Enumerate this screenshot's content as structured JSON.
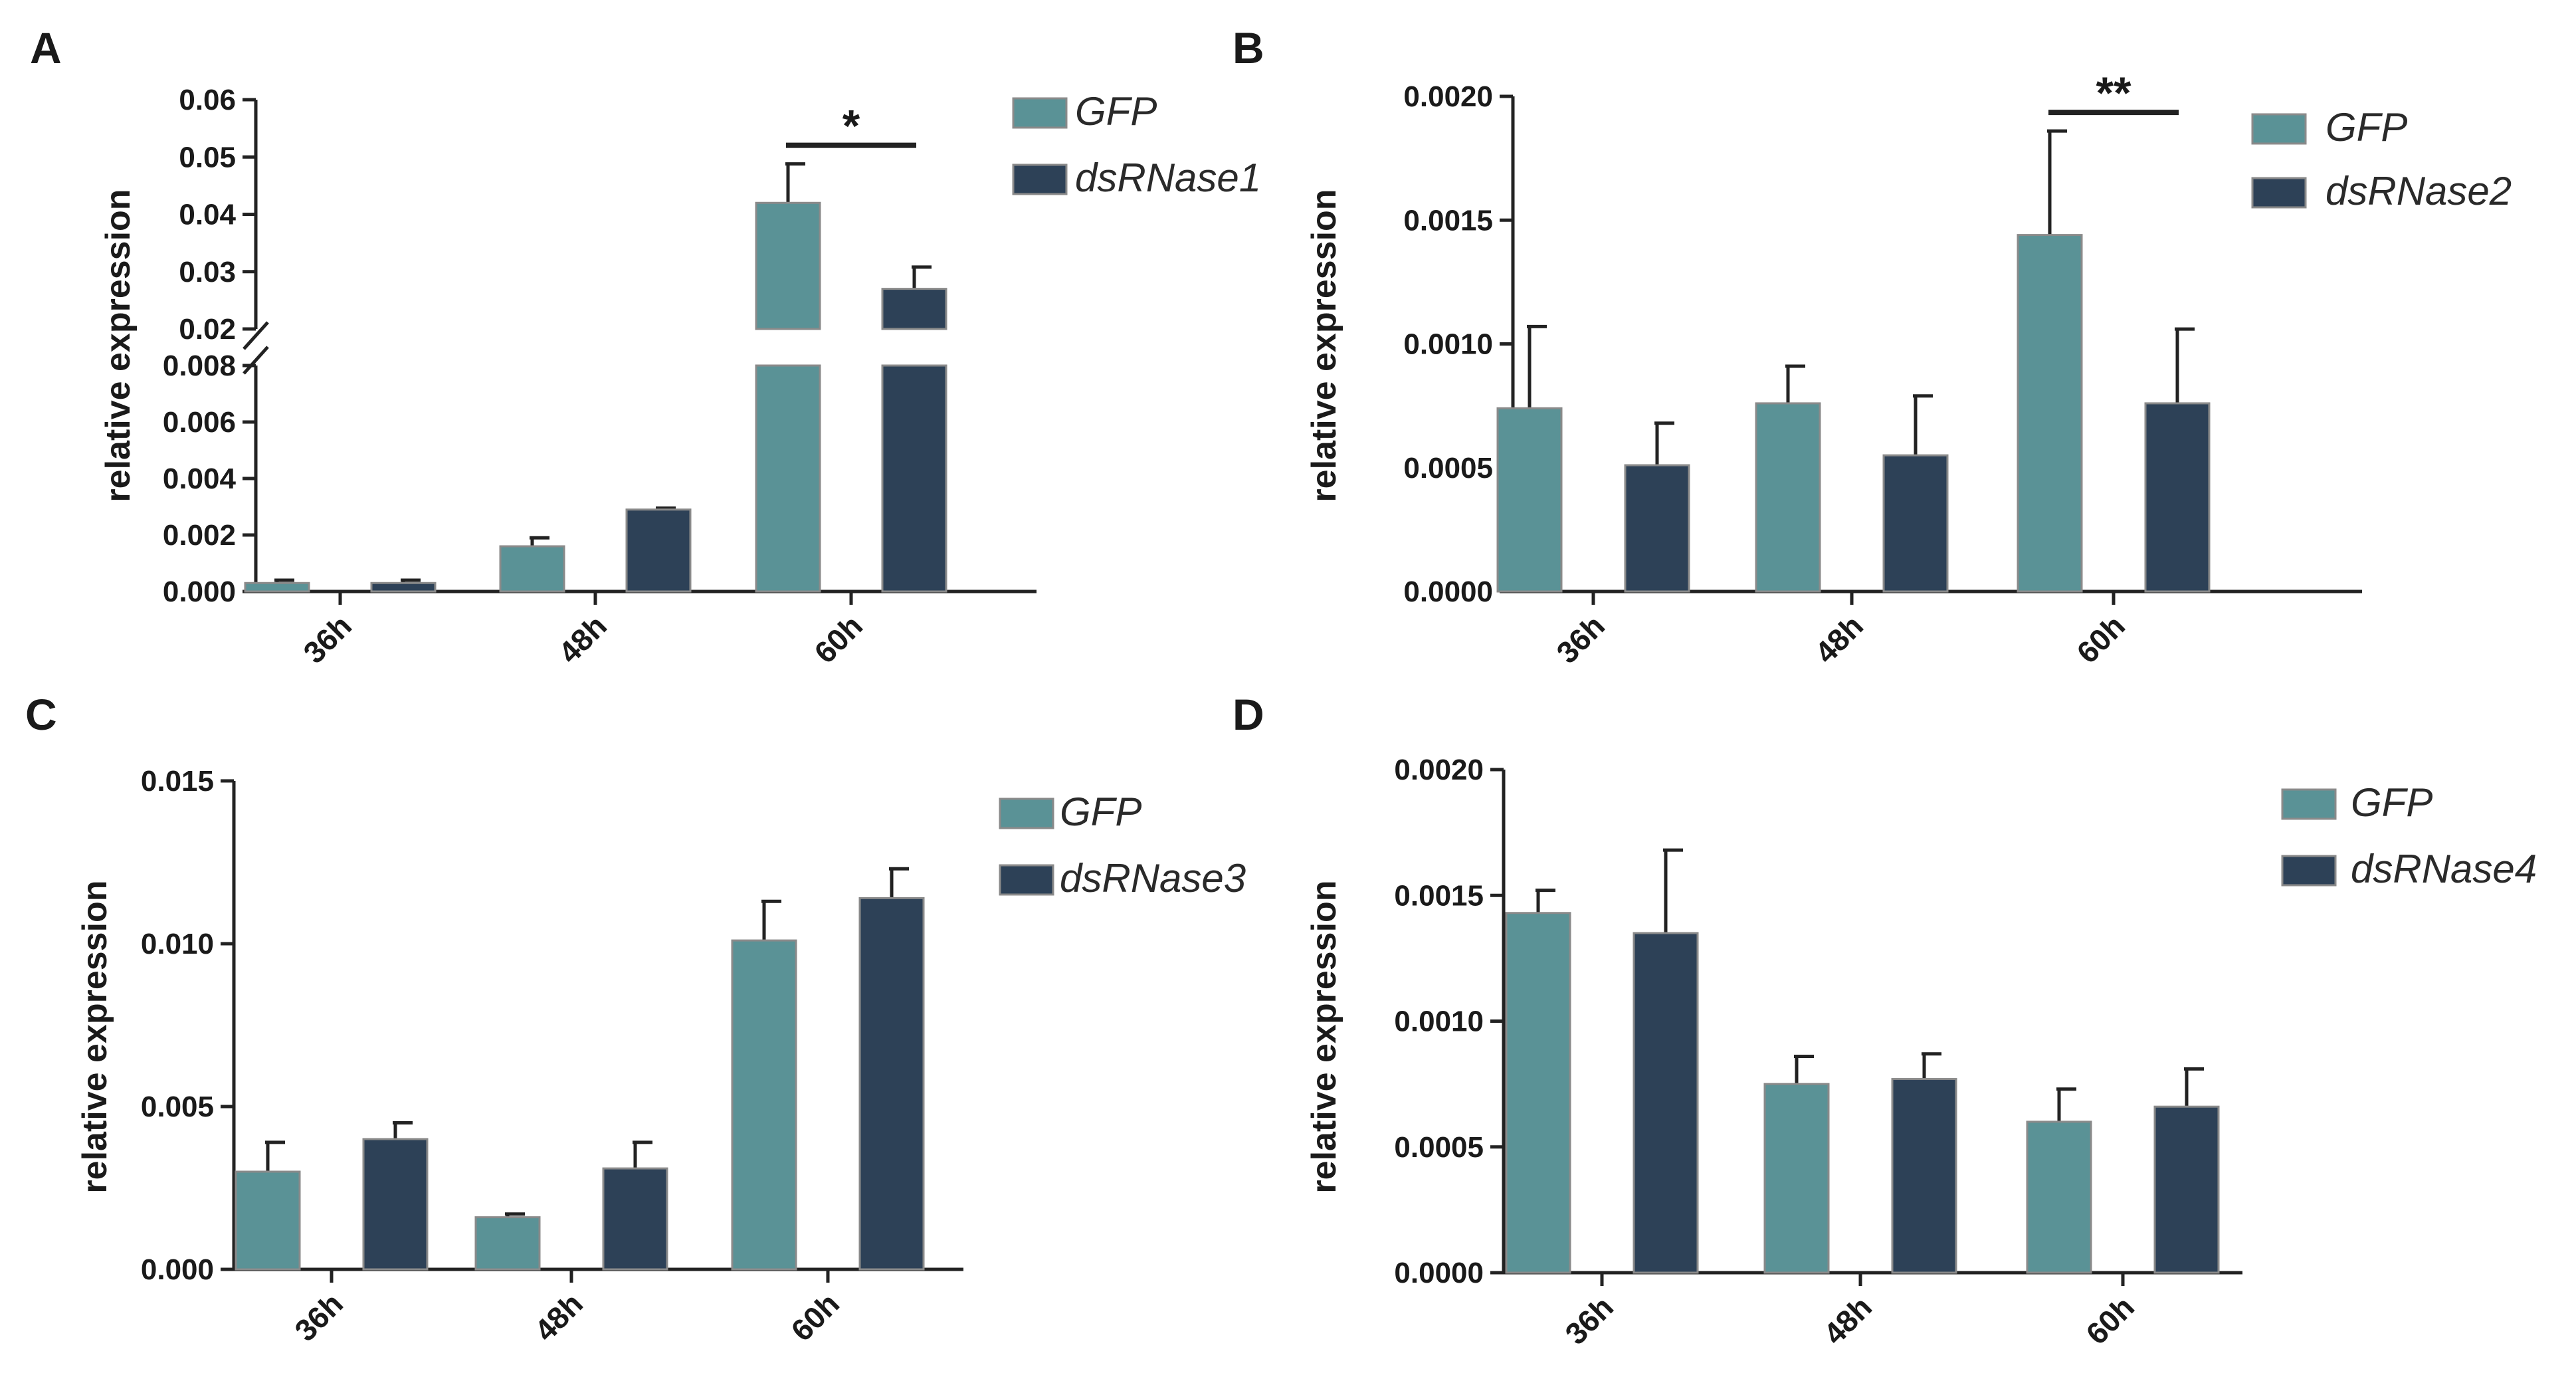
{
  "colors": {
    "gfp": "#5a9296",
    "knockdown": "#2d4157",
    "edge": "#8a8a8a",
    "axis": "#222222"
  },
  "chart_data": [
    {
      "panel": "A",
      "type": "bar",
      "ylabel": "relative expression",
      "categories": [
        "36h",
        "48h",
        "60h"
      ],
      "series": [
        {
          "name": "GFP",
          "values": [
            0.0003,
            0.0016,
            0.042
          ],
          "errors": [
            0.0001,
            0.0003,
            0.0068
          ]
        },
        {
          "name": "dsRNase1",
          "values": [
            0.0003,
            0.0029,
            0.027
          ],
          "errors": [
            0.0001,
            5e-05,
            0.0038
          ]
        }
      ],
      "axis_break": {
        "lower": [
          0,
          0.008
        ],
        "upper": [
          0.02,
          0.06
        ]
      },
      "yticks_lower": [
        "0.000",
        "0.002",
        "0.004",
        "0.006",
        "0.008"
      ],
      "yticks_upper": [
        "0.02",
        "0.03",
        "0.04",
        "0.05",
        "0.06"
      ],
      "annotations": [
        {
          "text": "*",
          "category": "60h"
        }
      ]
    },
    {
      "panel": "B",
      "type": "bar",
      "ylabel": "relative expression",
      "categories": [
        "36h",
        "48h",
        "60h"
      ],
      "series": [
        {
          "name": "GFP",
          "values": [
            0.00074,
            0.00076,
            0.00144
          ],
          "errors": [
            0.00033,
            0.00015,
            0.00042
          ]
        },
        {
          "name": "dsRNase2",
          "values": [
            0.00051,
            0.00055,
            0.00076
          ],
          "errors": [
            0.00017,
            0.00024,
            0.0003
          ]
        }
      ],
      "ylim": [
        0,
        0.002
      ],
      "yticks": [
        "0.0000",
        "0.0005",
        "0.0010",
        "0.0015",
        "0.0020"
      ],
      "annotations": [
        {
          "text": "**",
          "category": "60h"
        }
      ]
    },
    {
      "panel": "C",
      "type": "bar",
      "ylabel": "relative expression",
      "categories": [
        "36h",
        "48h",
        "60h"
      ],
      "series": [
        {
          "name": "GFP",
          "values": [
            0.003,
            0.0016,
            0.0101
          ],
          "errors": [
            0.0009,
            0.0001,
            0.0012
          ]
        },
        {
          "name": "dsRNase3",
          "values": [
            0.004,
            0.0031,
            0.0114
          ],
          "errors": [
            0.0005,
            0.0008,
            0.0009
          ]
        }
      ],
      "ylim": [
        0,
        0.015
      ],
      "yticks": [
        "0.000",
        "0.005",
        "0.010",
        "0.015"
      ],
      "annotations": []
    },
    {
      "panel": "D",
      "type": "bar",
      "ylabel": "relative expression",
      "categories": [
        "36h",
        "48h",
        "60h"
      ],
      "series": [
        {
          "name": "GFP",
          "values": [
            0.00143,
            0.00075,
            0.0006
          ],
          "errors": [
            9e-05,
            0.00011,
            0.00013
          ]
        },
        {
          "name": "dsRNase4",
          "values": [
            0.00135,
            0.00077,
            0.00066
          ],
          "errors": [
            0.00033,
            0.0001,
            0.00015
          ]
        }
      ],
      "ylim": [
        0,
        0.002
      ],
      "yticks": [
        "0.0000",
        "0.0005",
        "0.0010",
        "0.0015",
        "0.0020"
      ],
      "annotations": []
    }
  ]
}
